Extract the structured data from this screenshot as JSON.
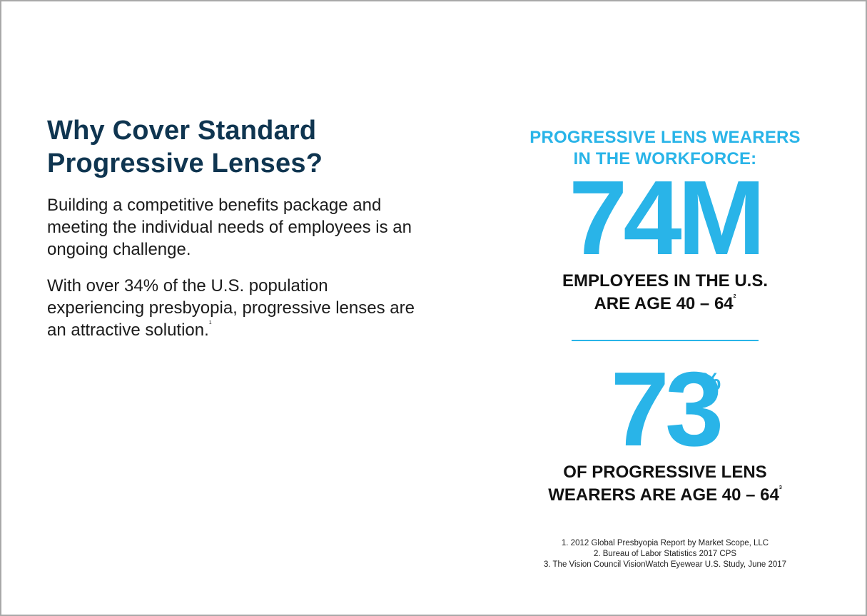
{
  "left": {
    "heading_line1": "Why Cover Standard",
    "heading_line2": "Progressive Lenses?",
    "para1": "Building a competitive benefits package and meeting the individual needs of employees is an ongoing challenge.",
    "para2": "With over 34% of the U.S. population experiencing presbyopia, progressive lenses are an attractive solution.",
    "para2_ref": "1"
  },
  "right": {
    "header_line1": "PROGRESSIVE LENS WEARERS",
    "header_line2": "IN THE WORKFORCE:",
    "stat1_value": "74M",
    "stat1_line1": "EMPLOYEES IN THE U.S.",
    "stat1_line2": "ARE AGE 40 – 64",
    "stat1_ref": "2",
    "stat2_value": "73",
    "stat2_unit": "%",
    "stat2_line1": "OF PROGRESSIVE LENS",
    "stat2_line2": "WEARERS ARE AGE 40 – 64",
    "stat2_ref": "3"
  },
  "footnotes": [
    "1. 2012 Global Presbyopia Report by Market Scope, LLC",
    "2. Bureau of Labor Statistics 2017 CPS",
    "3. The Vision Council VisionWatch Eyewear U.S. Study, June 2017"
  ],
  "colors": {
    "heading": "#0f3550",
    "accent": "#29b4e8",
    "body_text": "#1b1b1b"
  }
}
